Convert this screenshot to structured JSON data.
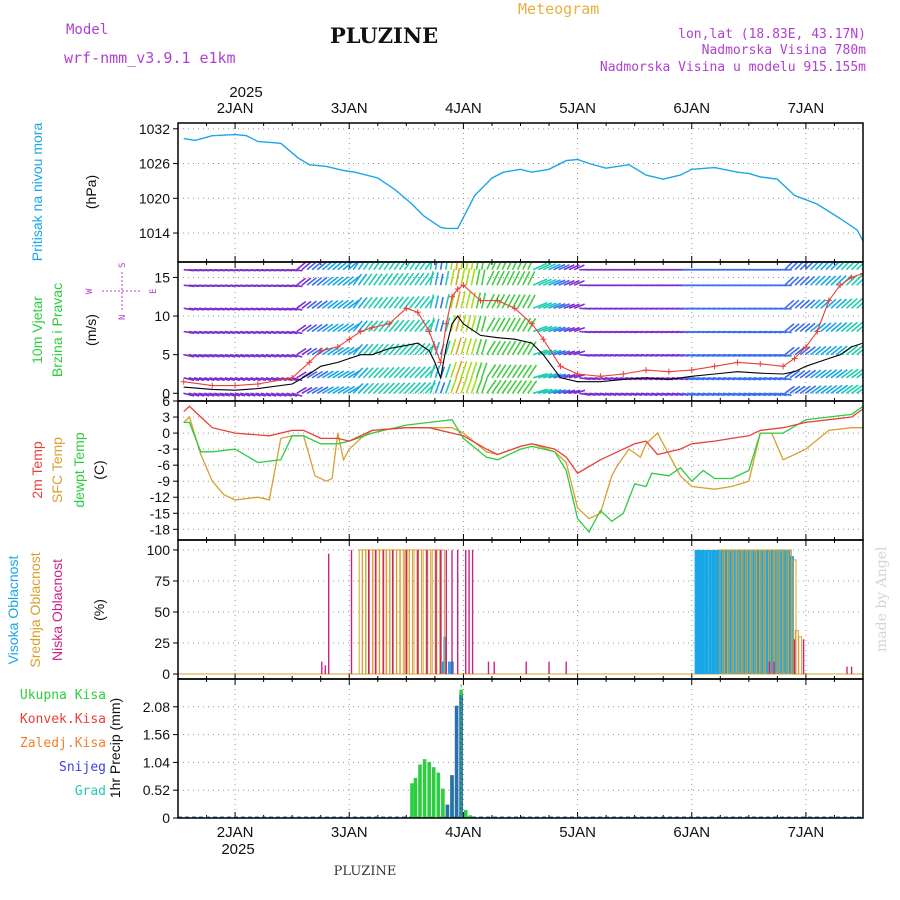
{
  "header": {
    "model_label": "Model",
    "model_name": "wrf-nmm_v3.9.1  e1km",
    "station": "PLUZINE",
    "product": "Meteogram",
    "location": "lon,lat (18.83E, 43.17N)",
    "elevation": "Nadmorska Visina 780m",
    "model_elevation": "Nadmorska Visina u modelu 915.155m",
    "footer_station": "PLUZINE",
    "watermark": "made by Angel"
  },
  "colors": {
    "pressure": "#1aa7e6",
    "temp2m": "#e8403a",
    "sfc_temp": "#d9a030",
    "dewpoint": "#2ecc40",
    "high_cloud": "#1aa7e6",
    "mid_cloud": "#d9a030",
    "low_cloud": "#cc2288",
    "wind_speed": "#000000",
    "gust": "#e8403a",
    "label_purple": "#b040d0",
    "label_orange": "#e8b040"
  },
  "chart_data": [
    {
      "type": "line",
      "name": "pressure",
      "ylabel_lines": [
        "Pritisak na nivou mora",
        "(hPa)"
      ],
      "ylim": [
        1009,
        1033
      ],
      "yticks": [
        1014,
        1020,
        1026,
        1032
      ],
      "x_day": [
        1.55,
        1.65,
        1.8,
        2.0,
        2.1,
        2.2,
        2.4,
        2.55,
        2.65,
        2.8,
        2.95,
        3.05,
        3.25,
        3.4,
        3.55,
        3.65,
        3.8,
        3.85,
        3.95,
        4.1,
        4.25,
        4.35,
        4.5,
        4.6,
        4.75,
        4.9,
        5.0,
        5.1,
        5.25,
        5.45,
        5.6,
        5.75,
        5.9,
        6.0,
        6.2,
        6.4,
        6.5,
        6.6,
        6.75,
        6.9,
        7.1,
        7.3,
        7.45,
        7.5
      ],
      "y_hpa": [
        1030.3,
        1030.0,
        1030.8,
        1031.0,
        1030.8,
        1029.8,
        1029.5,
        1027.0,
        1025.8,
        1025.5,
        1024.8,
        1024.5,
        1023.5,
        1021.5,
        1019.0,
        1017.0,
        1015.0,
        1014.8,
        1014.8,
        1020.5,
        1023.5,
        1024.5,
        1025.0,
        1024.5,
        1025.0,
        1026.5,
        1026.7,
        1026.0,
        1025.2,
        1025.8,
        1024.0,
        1023.3,
        1024.0,
        1025.0,
        1025.3,
        1024.5,
        1024.3,
        1023.7,
        1023.3,
        1020.5,
        1019.0,
        1016.5,
        1014.5,
        1012.6
      ]
    },
    {
      "type": "line",
      "name": "wind",
      "ylabel_lines": [
        "10m Vjetar",
        "Brzina i Pravac",
        "(m/s)"
      ],
      "compass": [
        "N",
        "W",
        "E",
        "S"
      ],
      "ylim": [
        -1,
        17
      ],
      "yticks": [
        0,
        5,
        10,
        15
      ],
      "barb_levels_ms": [
        0,
        2,
        5,
        8,
        11,
        14,
        16
      ],
      "series": [
        {
          "name": "wind_speed",
          "x_day": [
            1.55,
            1.8,
            2.0,
            2.2,
            2.5,
            2.65,
            2.75,
            2.9,
            3.0,
            3.1,
            3.2,
            3.35,
            3.5,
            3.6,
            3.7,
            3.75,
            3.8,
            3.85,
            3.9,
            3.95,
            4.0,
            4.15,
            4.3,
            4.45,
            4.6,
            4.7,
            4.85,
            5.0,
            5.2,
            5.4,
            5.6,
            5.8,
            6.0,
            6.2,
            6.4,
            6.6,
            6.8,
            6.9,
            7.0,
            7.1,
            7.2,
            7.3,
            7.4,
            7.5
          ],
          "values": [
            0.8,
            0.5,
            0.4,
            0.6,
            1.2,
            2.5,
            3.5,
            4.0,
            4.5,
            5.0,
            5.0,
            5.8,
            6.2,
            6.5,
            5.5,
            4.0,
            2.0,
            6.0,
            9.0,
            10.0,
            9.0,
            7.5,
            7.2,
            7.0,
            6.5,
            5.0,
            2.0,
            1.5,
            1.5,
            1.8,
            2.0,
            1.8,
            2.2,
            2.5,
            2.8,
            2.6,
            2.5,
            2.8,
            3.5,
            4.0,
            4.5,
            5.0,
            6.0,
            6.5
          ]
        },
        {
          "name": "gust",
          "x_day": [
            1.55,
            1.8,
            2.0,
            2.2,
            2.5,
            2.65,
            2.75,
            2.9,
            3.0,
            3.1,
            3.2,
            3.35,
            3.5,
            3.6,
            3.7,
            3.75,
            3.8,
            3.85,
            3.9,
            3.95,
            4.0,
            4.15,
            4.3,
            4.45,
            4.6,
            4.7,
            4.85,
            5.0,
            5.2,
            5.4,
            5.6,
            5.8,
            6.0,
            6.2,
            6.4,
            6.6,
            6.8,
            6.9,
            7.0,
            7.1,
            7.2,
            7.3,
            7.4,
            7.5
          ],
          "values": [
            1.5,
            1.0,
            1.0,
            1.2,
            2.0,
            4.0,
            5.5,
            6.0,
            7.0,
            8.0,
            8.5,
            9.0,
            11.0,
            10.5,
            8.0,
            6.0,
            4.0,
            9.0,
            12.5,
            13.5,
            14.0,
            12.0,
            12.0,
            11.0,
            9.0,
            7.0,
            3.5,
            2.5,
            2.2,
            2.5,
            3.0,
            2.8,
            3.0,
            3.5,
            4.0,
            3.8,
            3.5,
            4.5,
            6.0,
            8.0,
            12.0,
            14.0,
            15.0,
            15.5
          ]
        }
      ]
    },
    {
      "type": "line",
      "name": "temperature",
      "ylabel_lines": [
        "2m Temp",
        "SFC Temp",
        "dewpt Temp",
        "(C)"
      ],
      "ylim": [
        -20,
        6
      ],
      "yticks": [
        6,
        3,
        0,
        -3,
        -6,
        -9,
        -12,
        -15,
        -18
      ],
      "series": [
        {
          "name": "2m Temp",
          "x_day": [
            1.55,
            1.6,
            1.7,
            1.8,
            2.0,
            2.3,
            2.5,
            2.6,
            2.75,
            2.9,
            3.0,
            3.2,
            3.5,
            3.7,
            3.9,
            4.0,
            4.2,
            4.3,
            4.5,
            4.6,
            4.8,
            4.9,
            5.0,
            5.2,
            5.35,
            5.5,
            5.6,
            5.7,
            5.9,
            6.0,
            6.2,
            6.35,
            6.5,
            6.6,
            6.8,
            7.0,
            7.2,
            7.4,
            7.5
          ],
          "values": [
            4.0,
            5.0,
            3.0,
            1.0,
            0.0,
            -0.5,
            0.5,
            0.5,
            -1.0,
            -1.0,
            -1.5,
            0.5,
            1.0,
            1.0,
            0.0,
            -0.5,
            -3.0,
            -4.0,
            -2.5,
            -2.0,
            -3.0,
            -4.5,
            -7.5,
            -5.0,
            -3.5,
            -2.0,
            -1.5,
            -4.0,
            -3.0,
            -2.0,
            -1.5,
            -1.0,
            -0.5,
            0.5,
            1.0,
            2.0,
            2.5,
            3.0,
            4.5
          ]
        },
        {
          "name": "SFC Temp",
          "x_day": [
            1.55,
            1.6,
            1.7,
            1.8,
            1.9,
            2.0,
            2.2,
            2.3,
            2.4,
            2.5,
            2.6,
            2.7,
            2.8,
            2.85,
            2.9,
            2.95,
            3.0,
            3.1,
            3.2,
            3.5,
            3.7,
            3.9,
            4.0,
            4.2,
            4.3,
            4.5,
            4.6,
            4.8,
            4.9,
            5.0,
            5.1,
            5.2,
            5.3,
            5.35,
            5.45,
            5.55,
            5.6,
            5.7,
            5.9,
            6.0,
            6.2,
            6.35,
            6.5,
            6.6,
            6.7,
            6.8,
            6.9,
            7.0,
            7.2,
            7.4,
            7.5
          ],
          "values": [
            2.0,
            3.0,
            -4.0,
            -9.0,
            -11.5,
            -12.5,
            -12.0,
            -12.5,
            -1.0,
            -0.5,
            -0.5,
            -8.0,
            -9.0,
            -8.5,
            0.0,
            -5.0,
            -3.0,
            -1.0,
            0.5,
            1.0,
            1.0,
            1.0,
            0.0,
            -3.5,
            -4.0,
            -2.5,
            -2.0,
            -3.5,
            -5.5,
            -14.0,
            -16.0,
            -15.0,
            -8.0,
            -6.0,
            -3.0,
            -4.5,
            -2.0,
            0.0,
            -8.0,
            -10.0,
            -10.5,
            -10.0,
            -9.0,
            0.0,
            0.0,
            -5.0,
            -4.0,
            -3.0,
            0.5,
            1.0,
            1.0
          ]
        },
        {
          "name": "dewpt Temp",
          "x_day": [
            1.55,
            1.6,
            1.7,
            1.8,
            2.0,
            2.2,
            2.4,
            2.5,
            2.6,
            2.75,
            2.9,
            3.0,
            3.2,
            3.5,
            3.7,
            3.9,
            4.0,
            4.2,
            4.3,
            4.5,
            4.6,
            4.8,
            4.9,
            5.0,
            5.1,
            5.2,
            5.3,
            5.4,
            5.5,
            5.6,
            5.65,
            5.8,
            5.9,
            6.0,
            6.1,
            6.2,
            6.35,
            6.5,
            6.6,
            6.8,
            7.0,
            7.2,
            7.4,
            7.5
          ],
          "values": [
            2.0,
            2.0,
            -3.5,
            -3.5,
            -3.0,
            -5.5,
            -5.0,
            -0.5,
            -0.5,
            -2.0,
            -2.0,
            -1.5,
            0.0,
            1.5,
            2.0,
            2.5,
            -1.0,
            -4.5,
            -5.0,
            -3.0,
            -2.5,
            -3.5,
            -7.0,
            -16.0,
            -18.5,
            -14.5,
            -16.5,
            -15.0,
            -9.5,
            -10.0,
            -7.5,
            -8.0,
            -6.5,
            -9.0,
            -7.0,
            -8.5,
            -8.5,
            -7.0,
            0.0,
            0.0,
            2.5,
            3.0,
            3.5,
            5.0
          ]
        }
      ]
    },
    {
      "type": "bar",
      "name": "cloud",
      "ylabel_lines": [
        "Visoka Oblacnost",
        "Srednja Oblacnost",
        "Niska Oblacnost",
        "(%)"
      ],
      "ylim": [
        -4,
        108
      ],
      "yticks": [
        0,
        25,
        50,
        75,
        100
      ],
      "series": [
        {
          "name": "Visoka Oblacnost",
          "x_day": [
            3.82,
            3.84,
            3.88,
            3.9,
            6.04,
            6.07,
            6.1,
            6.13,
            6.16,
            6.19,
            6.22,
            6.25,
            6.28,
            6.31,
            6.34,
            6.37,
            6.4,
            6.43,
            6.46,
            6.49,
            6.52,
            6.55,
            6.58,
            6.61,
            6.64,
            6.67,
            6.7,
            6.73,
            6.76,
            6.79,
            6.82,
            6.85,
            6.88
          ],
          "values": [
            10,
            30,
            10,
            10,
            100,
            100,
            100,
            100,
            100,
            100,
            100,
            100,
            100,
            100,
            100,
            100,
            100,
            100,
            100,
            100,
            100,
            100,
            100,
            100,
            100,
            100,
            100,
            100,
            100,
            100,
            100,
            100,
            95
          ]
        },
        {
          "name": "Srednja Oblacnost",
          "x_day": [
            3.1,
            3.13,
            3.16,
            3.19,
            3.22,
            3.25,
            3.28,
            3.31,
            3.34,
            3.37,
            3.4,
            3.43,
            3.46,
            3.5,
            3.54,
            3.58,
            3.62,
            3.66,
            3.7,
            3.74,
            3.78,
            3.82,
            6.26,
            6.3,
            6.34,
            6.38,
            6.42,
            6.46,
            6.5,
            6.54,
            6.58,
            6.62,
            6.66,
            6.7,
            6.74,
            6.78,
            6.82,
            6.86,
            6.9,
            6.92,
            6.95
          ],
          "values": [
            100,
            100,
            100,
            100,
            100,
            100,
            100,
            100,
            100,
            100,
            100,
            100,
            100,
            100,
            100,
            100,
            100,
            100,
            100,
            100,
            100,
            100,
            100,
            100,
            100,
            100,
            100,
            100,
            100,
            100,
            100,
            100,
            100,
            100,
            100,
            100,
            100,
            100,
            92,
            35,
            30
          ]
        },
        {
          "name": "Niska Oblacnost",
          "x_day": [
            2.76,
            2.79,
            2.82,
            3.02,
            3.17,
            3.23,
            3.3,
            3.38,
            3.5,
            3.6,
            3.68,
            3.76,
            3.8,
            3.85,
            3.9,
            3.95,
            4.02,
            4.05,
            4.08,
            4.22,
            4.27,
            4.55,
            4.75,
            4.9,
            6.68,
            6.72,
            6.9,
            6.98,
            7.36,
            7.4
          ],
          "values": [
            10,
            7,
            97,
            100,
            100,
            100,
            100,
            100,
            100,
            100,
            100,
            100,
            100,
            100,
            100,
            100,
            100,
            100,
            100,
            10,
            10,
            10,
            10,
            10,
            10,
            10,
            28,
            28,
            6,
            6
          ]
        }
      ]
    },
    {
      "type": "bar",
      "name": "precip",
      "ylabel_lines": [
        "1hr Precip (mm)"
      ],
      "legend": [
        "Ukupna Kisa",
        "Konvek.Kisa",
        "Zaledj.Kisa",
        "Snijeg",
        "Grad"
      ],
      "ylim": [
        0,
        2.6
      ],
      "yticks": [
        0,
        0.52,
        1.04,
        1.56,
        2.08
      ],
      "series": [
        {
          "name": "Ukupna Kisa",
          "x_day": [
            3.55,
            3.58,
            3.62,
            3.66,
            3.7,
            3.74,
            3.78,
            3.82,
            3.86,
            3.9,
            3.94,
            3.98,
            4.02,
            4.06
          ],
          "values": [
            0.65,
            0.75,
            1.0,
            1.1,
            1.05,
            0.95,
            0.85,
            0.55,
            0.25,
            0.8,
            0.6,
            2.4,
            0.15,
            0.05
          ]
        },
        {
          "name": "Snijeg",
          "x_day": [
            3.86,
            3.9,
            3.94,
            3.98
          ],
          "values": [
            0.25,
            0.8,
            2.1,
            2.3
          ]
        }
      ]
    }
  ],
  "axes": {
    "year": "2025",
    "day_labels": [
      {
        "day": 2,
        "label": "2JAN"
      },
      {
        "day": 3,
        "label": "3JAN"
      },
      {
        "day": 4,
        "label": "4JAN"
      },
      {
        "day": 5,
        "label": "5JAN"
      },
      {
        "day": 6,
        "label": "6JAN"
      },
      {
        "day": 7,
        "label": "7JAN"
      }
    ],
    "xlim_day": [
      1.5,
      7.5
    ]
  }
}
